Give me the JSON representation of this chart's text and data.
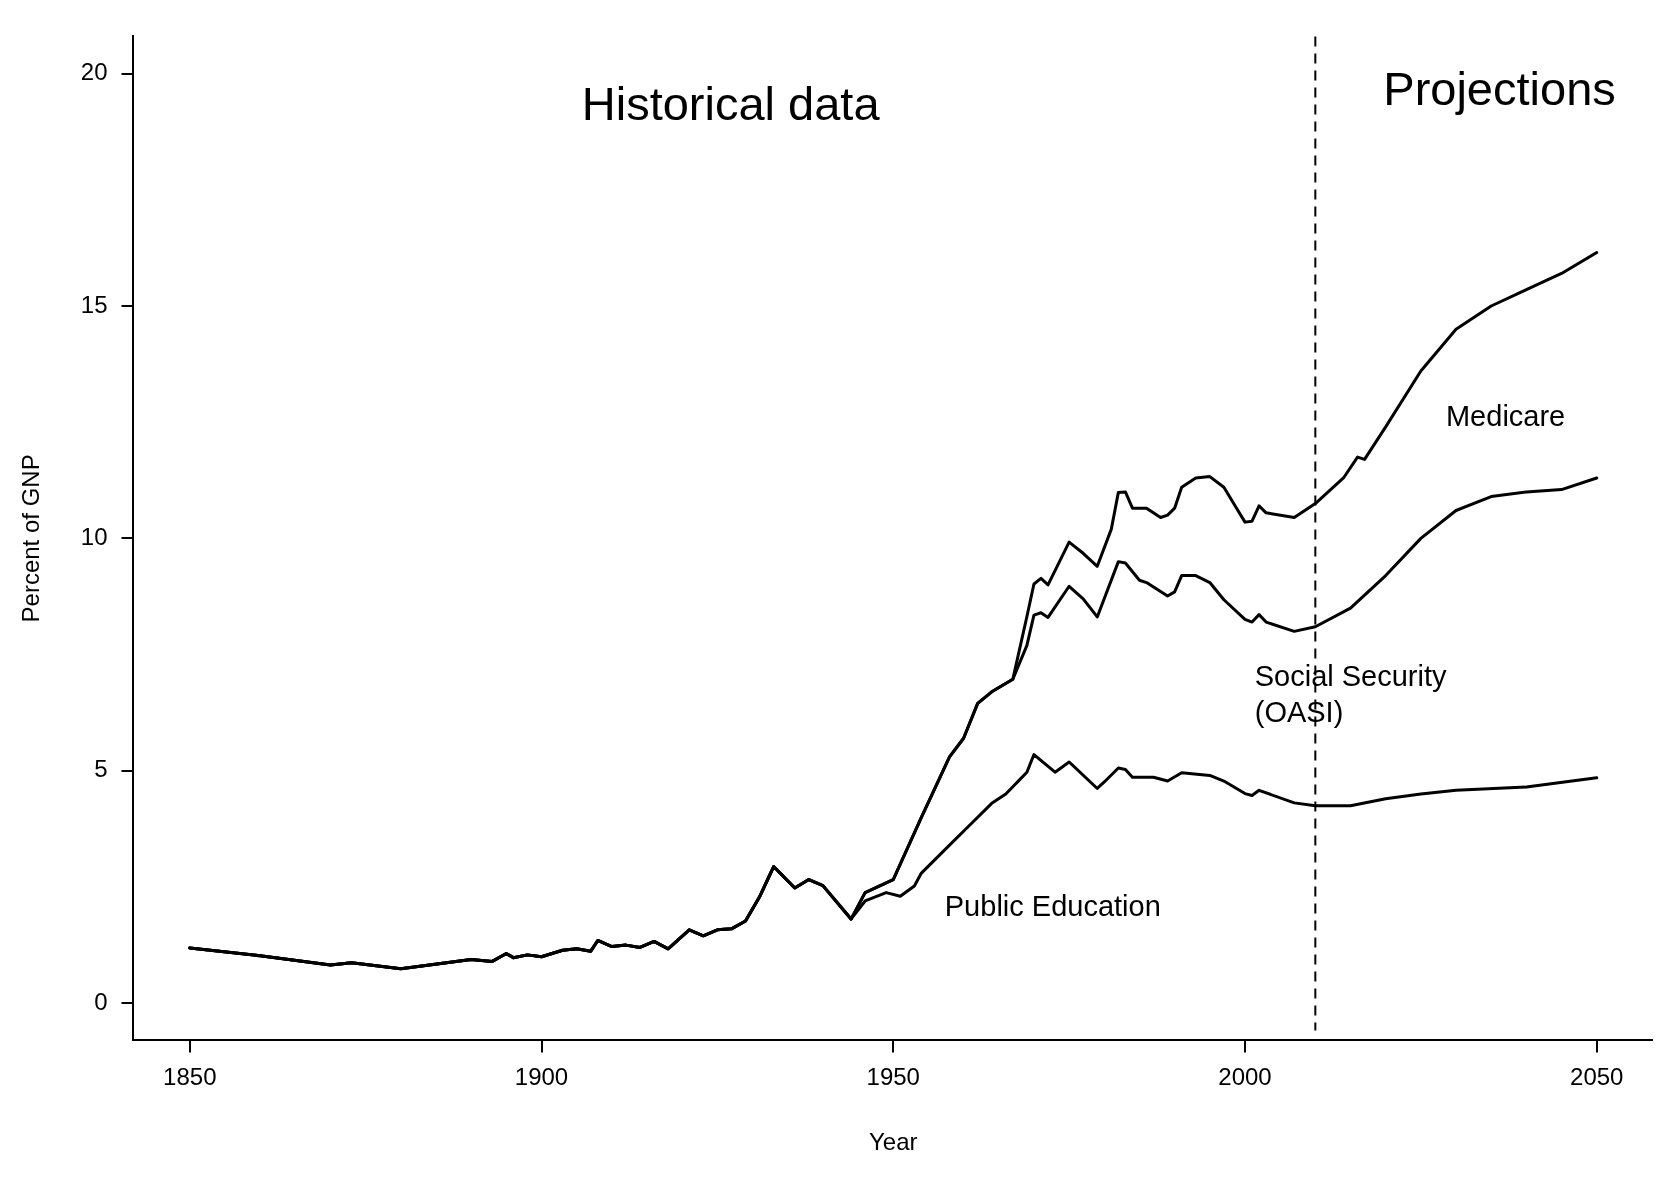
{
  "chart_data": {
    "type": "line",
    "xlabel": "Year",
    "ylabel": "Percent of GNP",
    "xlim": [
      1842,
      2058
    ],
    "ylim": [
      -0.8,
      20.8
    ],
    "xticks": [
      1850,
      1900,
      1950,
      2000,
      2050
    ],
    "yticks": [
      0,
      5,
      10,
      15,
      20
    ],
    "grid": false,
    "legend": false,
    "marker": "none",
    "line_style": "solid",
    "series": [
      {
        "color": "#000000",
        "x": [
          1850,
          1860,
          1870,
          1873,
          1880,
          1890,
          1893,
          1895,
          1896,
          1898,
          1900,
          1903,
          1905,
          1907,
          1908,
          1910,
          1912,
          1914,
          1916,
          1918,
          1921,
          1923,
          1925,
          1927,
          1929,
          1931,
          1933,
          1936,
          1938,
          1940,
          1944,
          1946,
          1949,
          1951,
          1953,
          1954,
          1958,
          1961,
          1964,
          1966,
          1969,
          1970,
          1973,
          1975,
          1979,
          1980,
          1982,
          1983,
          1984,
          1987,
          1989,
          1991,
          1995,
          1997,
          2000,
          2001,
          2002,
          2007,
          2010,
          2015,
          2020,
          2025,
          2030,
          2040,
          2050
        ],
        "values": [
          1.19,
          1.02,
          0.82,
          0.87,
          0.74,
          0.94,
          0.9,
          1.07,
          0.98,
          1.04,
          1.0,
          1.14,
          1.17,
          1.12,
          1.35,
          1.22,
          1.25,
          1.2,
          1.33,
          1.17,
          1.58,
          1.45,
          1.58,
          1.6,
          1.77,
          2.29,
          2.94,
          2.48,
          2.66,
          2.53,
          1.81,
          2.2,
          2.38,
          2.3,
          2.52,
          2.8,
          3.4,
          3.85,
          4.3,
          4.5,
          4.97,
          5.35,
          4.97,
          5.19,
          4.62,
          4.76,
          5.06,
          5.03,
          4.86,
          4.86,
          4.78,
          4.96,
          4.9,
          4.78,
          4.51,
          4.47,
          4.58,
          4.31,
          4.25,
          4.25,
          4.4,
          4.5,
          4.58,
          4.65,
          4.85
        ]
      },
      {
        "color": "#000000",
        "x": [
          1850,
          1860,
          1870,
          1873,
          1880,
          1890,
          1893,
          1895,
          1896,
          1898,
          1900,
          1903,
          1905,
          1907,
          1908,
          1910,
          1912,
          1914,
          1916,
          1918,
          1921,
          1923,
          1925,
          1927,
          1929,
          1931,
          1933,
          1936,
          1938,
          1940,
          1944,
          1946,
          1950,
          1954,
          1958,
          1960,
          1962,
          1964,
          1967,
          1969,
          1970,
          1971,
          1972,
          1975,
          1977,
          1979,
          1982,
          1983,
          1985,
          1986,
          1989,
          1990,
          1991,
          1993,
          1995,
          1997,
          2000,
          2001,
          2002,
          2003,
          2007,
          2010,
          2015,
          2020,
          2025,
          2030,
          2035,
          2040,
          2045,
          2050
        ],
        "values": [
          1.19,
          1.02,
          0.82,
          0.87,
          0.74,
          0.94,
          0.9,
          1.07,
          0.98,
          1.04,
          1.0,
          1.14,
          1.17,
          1.12,
          1.35,
          1.22,
          1.25,
          1.2,
          1.33,
          1.17,
          1.58,
          1.45,
          1.58,
          1.6,
          1.77,
          2.29,
          2.94,
          2.48,
          2.66,
          2.53,
          1.81,
          2.38,
          2.66,
          4.0,
          5.3,
          5.7,
          6.45,
          6.7,
          6.97,
          7.7,
          8.35,
          8.4,
          8.3,
          8.97,
          8.7,
          8.31,
          9.5,
          9.47,
          9.1,
          9.05,
          8.76,
          8.85,
          9.2,
          9.2,
          9.05,
          8.68,
          8.26,
          8.2,
          8.36,
          8.2,
          8.0,
          8.1,
          8.5,
          9.2,
          10.0,
          10.6,
          10.9,
          11.0,
          11.05,
          11.3
        ]
      },
      {
        "color": "#000000",
        "x": [
          1850,
          1860,
          1870,
          1873,
          1880,
          1890,
          1893,
          1895,
          1896,
          1898,
          1900,
          1903,
          1905,
          1907,
          1908,
          1910,
          1912,
          1914,
          1916,
          1918,
          1921,
          1923,
          1925,
          1927,
          1929,
          1931,
          1933,
          1936,
          1938,
          1940,
          1944,
          1946,
          1950,
          1954,
          1958,
          1960,
          1962,
          1964,
          1967,
          1969,
          1970,
          1971,
          1972,
          1975,
          1977,
          1979,
          1981,
          1982,
          1983,
          1984,
          1986,
          1988,
          1989,
          1990,
          1991,
          1993,
          1995,
          1997,
          2000,
          2001,
          2002,
          2003,
          2007,
          2010,
          2014,
          2016,
          2017,
          2020,
          2025,
          2030,
          2035,
          2040,
          2045,
          2050
        ],
        "values": [
          1.19,
          1.02,
          0.82,
          0.87,
          0.74,
          0.94,
          0.9,
          1.07,
          0.98,
          1.04,
          1.0,
          1.14,
          1.17,
          1.12,
          1.35,
          1.22,
          1.25,
          1.2,
          1.33,
          1.17,
          1.58,
          1.45,
          1.58,
          1.6,
          1.77,
          2.29,
          2.94,
          2.48,
          2.66,
          2.53,
          1.81,
          2.38,
          2.66,
          4.0,
          5.3,
          5.7,
          6.45,
          6.7,
          6.97,
          8.32,
          9.02,
          9.14,
          9.0,
          9.92,
          9.68,
          9.4,
          10.2,
          10.99,
          11.0,
          10.65,
          10.65,
          10.45,
          10.5,
          10.65,
          11.1,
          11.3,
          11.33,
          11.1,
          10.35,
          10.37,
          10.7,
          10.55,
          10.45,
          10.75,
          11.3,
          11.75,
          11.7,
          12.4,
          13.6,
          14.5,
          15.0,
          15.35,
          15.7,
          16.15
        ]
      }
    ],
    "ref_lines": [
      {
        "axis": "x",
        "value": 2010,
        "line_style": "dashed",
        "color": "#000000"
      }
    ],
    "annotations": [
      "Historical data",
      "Projections",
      "Medicare",
      "Social Security\n(OASI)",
      "Public Education"
    ]
  }
}
